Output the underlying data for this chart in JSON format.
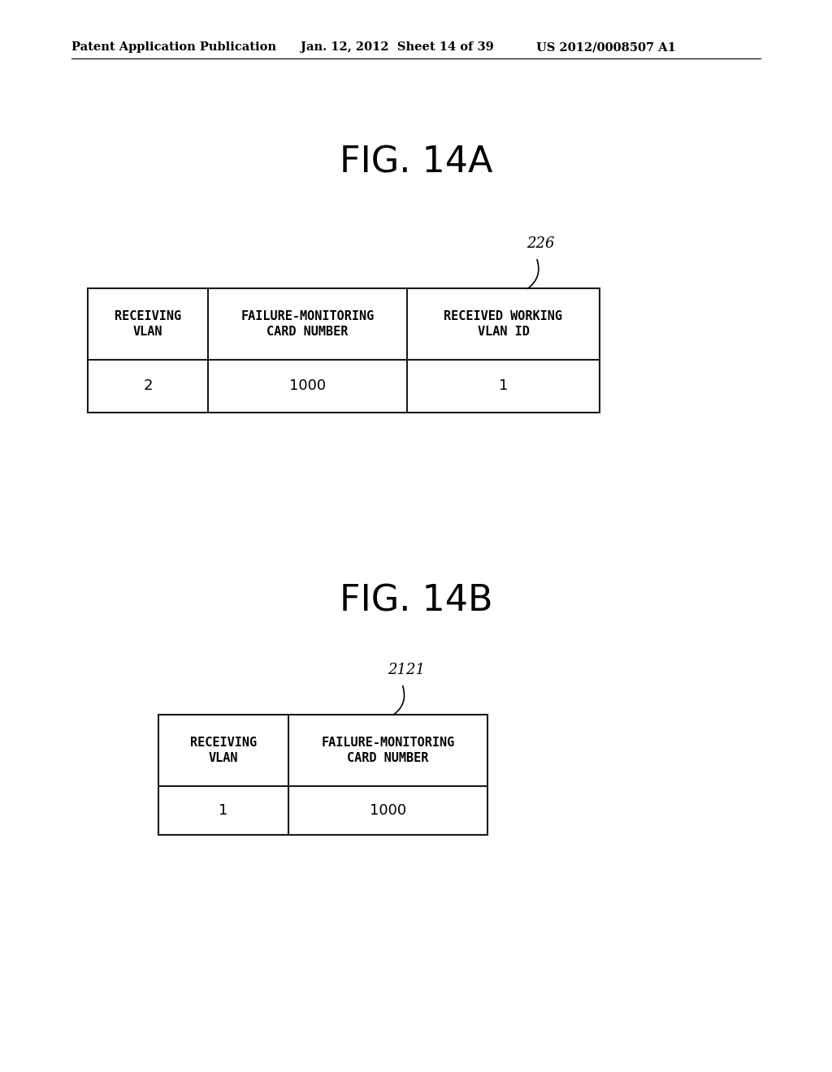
{
  "background_color": "#ffffff",
  "header_left": "Patent Application Publication",
  "header_mid": "Jan. 12, 2012  Sheet 14 of 39",
  "header_right": "US 2012/0008507 A1",
  "fig_title_a": "FIG. 14A",
  "fig_title_b": "FIG. 14B",
  "table_a_label": "226",
  "table_b_label": "2121",
  "table_a_headers": [
    "RECEIVING\nVLAN",
    "FAILURE-MONITORING\nCARD NUMBER",
    "RECEIVED WORKING\nVLAN ID"
  ],
  "table_a_data": [
    "2",
    "1000",
    "1"
  ],
  "table_b_headers": [
    "RECEIVING\nVLAN",
    "FAILURE-MONITORING\nCARD NUMBER"
  ],
  "table_b_data": [
    "1",
    "1000"
  ],
  "header_fontsize": 10.5,
  "fig_title_fontsize": 32,
  "table_header_fontsize": 11,
  "table_data_fontsize": 13,
  "label_fontsize": 13
}
